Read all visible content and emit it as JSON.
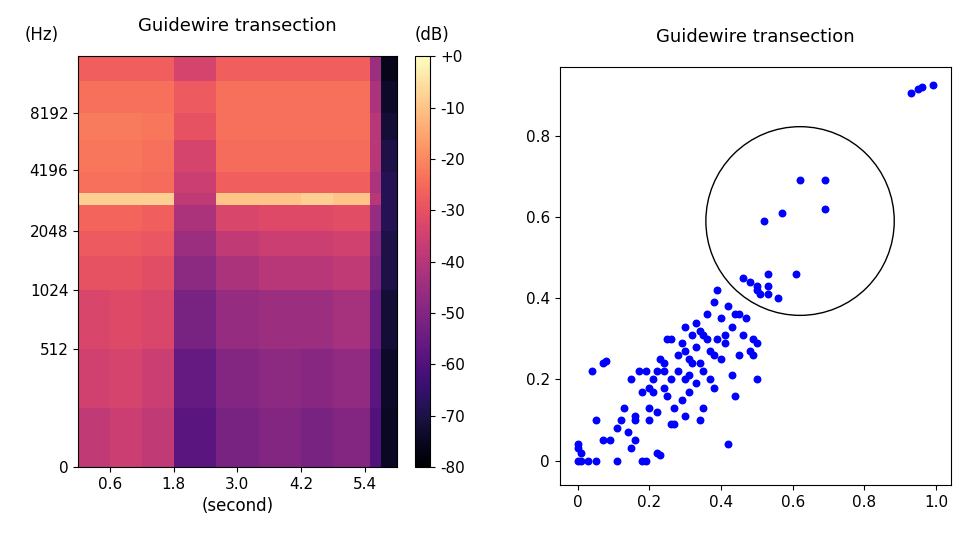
{
  "chart_data": [
    {
      "type": "heatmap",
      "title": "Guidewire transection",
      "xlabel": "(second)",
      "ylabel": "(Hz)",
      "colorbar_label": "(dB)",
      "color": "magma",
      "log": "y",
      "x_edges": [
        0,
        0.6,
        1.2,
        1.8,
        2.6,
        3.4,
        4.2,
        4.8,
        5.5,
        5.7,
        6.0
      ],
      "y_edges": [
        0,
        256,
        512,
        1024,
        1536,
        2048,
        2800,
        3200,
        4096,
        6000,
        8192,
        12000,
        16000
      ],
      "cells": [
        [
          -38,
          -36,
          -38,
          -58,
          -52,
          -50,
          -52,
          -50,
          -60,
          -75
        ],
        [
          -35,
          -34,
          -36,
          -56,
          -50,
          -48,
          -49,
          -47,
          -58,
          -74
        ],
        [
          -33,
          -32,
          -33,
          -52,
          -46,
          -45,
          -45,
          -43,
          -55,
          -72
        ],
        [
          -30,
          -30,
          -31,
          -48,
          -42,
          -40,
          -40,
          -38,
          -52,
          -70
        ],
        [
          -28,
          -28,
          -29,
          -45,
          -38,
          -36,
          -36,
          -35,
          -50,
          -70
        ],
        [
          -26,
          -26,
          -27,
          -42,
          -33,
          -32,
          -32,
          -31,
          -46,
          -68
        ],
        [
          -8,
          -8,
          -8,
          -38,
          -10,
          -10,
          -8,
          -10,
          -40,
          -68
        ],
        [
          -24,
          -24,
          -25,
          -36,
          -27,
          -27,
          -27,
          -27,
          -42,
          -68
        ],
        [
          -23,
          -23,
          -24,
          -34,
          -25,
          -25,
          -25,
          -25,
          -40,
          -70
        ],
        [
          -22,
          -22,
          -23,
          -30,
          -24,
          -24,
          -24,
          -24,
          -40,
          -72
        ],
        [
          -24,
          -24,
          -24,
          -28,
          -24,
          -24,
          -24,
          -24,
          -42,
          -74
        ],
        [
          -27,
          -27,
          -27,
          -34,
          -27,
          -27,
          -27,
          -27,
          -45,
          -76
        ]
      ],
      "xlim": [
        0,
        6.0
      ],
      "ylim": [
        0,
        16000
      ],
      "xticks": [
        0.6,
        1.8,
        3.0,
        4.2,
        5.4
      ],
      "yticks": [
        0,
        512,
        1024,
        2048,
        4196,
        8192
      ],
      "colorbar_range": [
        -80,
        0
      ],
      "colorbar_ticks": [
        {
          "value": 0,
          "label": "+0"
        },
        -10,
        -20,
        -30,
        -40,
        -50,
        -60,
        -70,
        -80
      ]
    },
    {
      "type": "scatter",
      "title": "Guidewire transection",
      "color": "#0000ff",
      "marker": "o",
      "x": [
        0.93,
        0.95,
        0.96,
        0.99,
        0.52,
        0.57,
        0.62,
        0.69,
        0.69,
        0.61,
        0.53,
        0.46,
        0.48,
        0.5,
        0.51,
        0.53,
        0.53,
        0.56,
        0.5,
        0,
        0,
        0,
        0.01,
        0.01,
        0.03,
        0.05,
        0.05,
        0.04,
        0.07,
        0.08,
        0.07,
        0.09,
        0.11,
        0.11,
        0.12,
        0.13,
        0.15,
        0.16,
        0.16,
        0.16,
        0.17,
        0.18,
        0.18,
        0.19,
        0.19,
        0.2,
        0.2,
        0.21,
        0.22,
        0.22,
        0.23,
        0.23,
        0.24,
        0.24,
        0.25,
        0.25,
        0.26,
        0.27,
        0.27,
        0.28,
        0.28,
        0.29,
        0.29,
        0.3,
        0.3,
        0.3,
        0.31,
        0.31,
        0.32,
        0.32,
        0.33,
        0.33,
        0.34,
        0.34,
        0.34,
        0.35,
        0.35,
        0.36,
        0.36,
        0.37,
        0.37,
        0.38,
        0.38,
        0.39,
        0.39,
        0.4,
        0.4,
        0.41,
        0.41,
        0.42,
        0.42,
        0.43,
        0.43,
        0.44,
        0.45,
        0.45,
        0.46,
        0.47,
        0.48,
        0.49,
        0.5,
        0.5,
        0.49,
        0.26,
        0.3,
        0.31,
        0.24,
        0.22,
        0.21,
        0.2,
        0.14,
        0.15,
        0.35,
        0.38,
        0.44,
        0.33,
        0.26
      ],
      "y": [
        0.905,
        0.915,
        0.92,
        0.925,
        0.59,
        0.61,
        0.69,
        0.69,
        0.62,
        0.46,
        0.46,
        0.45,
        0.44,
        0.42,
        0.41,
        0.43,
        0.41,
        0.4,
        0.43,
        0.04,
        0.03,
        0,
        0.02,
        0,
        0,
        0,
        0.1,
        0.22,
        0.24,
        0.245,
        0.05,
        0.05,
        0.08,
        0,
        0.1,
        0.13,
        0.03,
        0.05,
        0.1,
        0.11,
        0.22,
        0.17,
        0,
        0,
        0.22,
        0.13,
        0.18,
        0.2,
        0.12,
        0.02,
        0.015,
        0.25,
        0.22,
        0.18,
        0.3,
        0.16,
        0.2,
        0.13,
        0.09,
        0.26,
        0.22,
        0.29,
        0.15,
        0.27,
        0.2,
        0.11,
        0.25,
        0.17,
        0.24,
        0.31,
        0.19,
        0.28,
        0.24,
        0.32,
        0.1,
        0.31,
        0.22,
        0.3,
        0.36,
        0.27,
        0.2,
        0.26,
        0.18,
        0.3,
        0.42,
        0.35,
        0.25,
        0.31,
        0.29,
        0.04,
        0.38,
        0.33,
        0.21,
        0.36,
        0.36,
        0.26,
        0.31,
        0.35,
        0.27,
        0.3,
        0.29,
        0.2,
        0.26,
        0.3,
        0.33,
        0.21,
        0.24,
        0.22,
        0.17,
        0.1,
        0.07,
        0.2,
        0.13,
        0.39,
        0.16,
        0.34,
        0.09
      ],
      "xlim": [
        -0.05,
        1.04
      ],
      "ylim": [
        -0.06,
        0.97
      ],
      "xticks": [
        0,
        0.2,
        0.4,
        0.6,
        0.8,
        1.0
      ],
      "yticks": [
        0,
        0.2,
        0.4,
        0.6,
        0.8
      ]
    }
  ]
}
